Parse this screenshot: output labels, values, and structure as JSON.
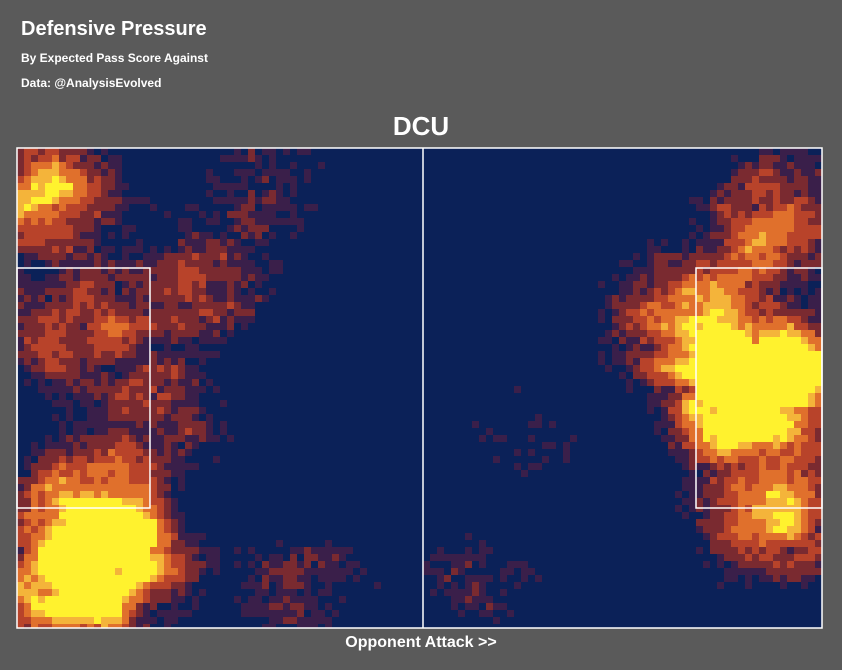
{
  "header": {
    "title": "Defensive Pressure",
    "subtitle": "By Expected Pass Score Against",
    "source": "Data: @AnalysisEvolved"
  },
  "chart_data": {
    "type": "heatmap",
    "team": "DCU",
    "xlabel": "Opponent Attack >>",
    "direction": "left-to-right",
    "grid": false,
    "colorscale": [
      "#0b2158",
      "#3a1f4a",
      "#7a2a30",
      "#b8432a",
      "#e0702c",
      "#f4b43a",
      "#fff22e"
    ],
    "hotspots": [
      {
        "region": "right penalty box",
        "x": 0.93,
        "y": 0.45,
        "intensity": 1.0
      },
      {
        "region": "right penalty box lower",
        "x": 0.9,
        "y": 0.55,
        "intensity": 0.95
      },
      {
        "region": "right wide lower",
        "x": 0.94,
        "y": 0.78,
        "intensity": 0.7
      },
      {
        "region": "right upper corner",
        "x": 0.95,
        "y": 0.12,
        "intensity": 0.5
      },
      {
        "region": "right upper channel",
        "x": 0.88,
        "y": 0.25,
        "intensity": 0.35
      },
      {
        "region": "right edge of box",
        "x": 0.8,
        "y": 0.38,
        "intensity": 0.45
      },
      {
        "region": "left bottom corner",
        "x": 0.12,
        "y": 0.85,
        "intensity": 0.9
      },
      {
        "region": "left bottom wide",
        "x": 0.05,
        "y": 0.95,
        "intensity": 0.8
      },
      {
        "region": "left box lower",
        "x": 0.08,
        "y": 0.72,
        "intensity": 0.6
      },
      {
        "region": "left upper corner",
        "x": 0.04,
        "y": 0.1,
        "intensity": 0.75
      },
      {
        "region": "left box",
        "x": 0.07,
        "y": 0.38,
        "intensity": 0.55
      },
      {
        "region": "left midfield",
        "x": 0.23,
        "y": 0.3,
        "intensity": 0.45
      },
      {
        "region": "left central",
        "x": 0.18,
        "y": 0.55,
        "intensity": 0.4
      },
      {
        "region": "left half bottom",
        "x": 0.35,
        "y": 0.9,
        "intensity": 0.35
      },
      {
        "region": "left half top",
        "x": 0.3,
        "y": 0.08,
        "intensity": 0.3
      },
      {
        "region": "right half bottom",
        "x": 0.58,
        "y": 0.9,
        "intensity": 0.25
      },
      {
        "region": "right half middle",
        "x": 0.62,
        "y": 0.6,
        "intensity": 0.25
      }
    ]
  }
}
